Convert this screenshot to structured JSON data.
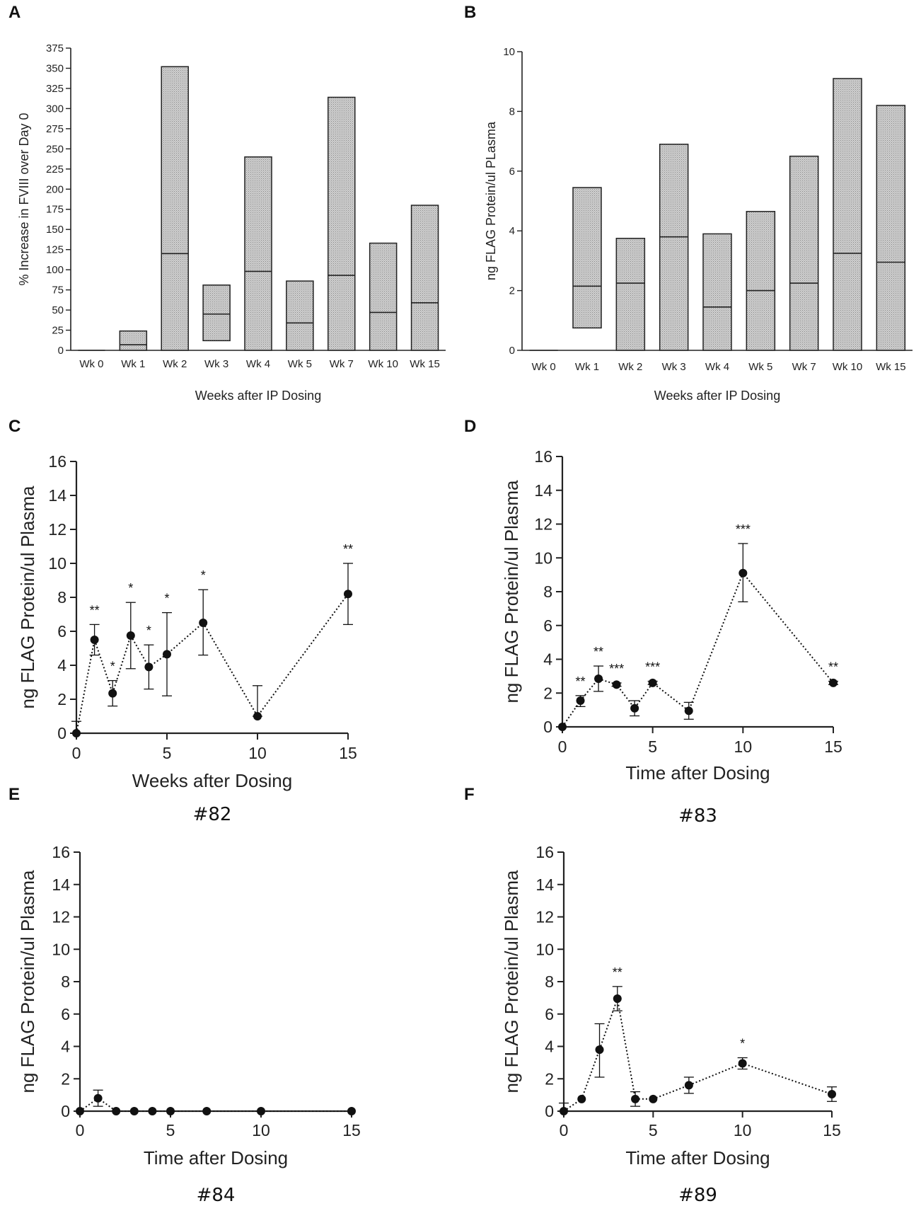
{
  "colors": {
    "bar_fill": "#bdbdbd",
    "stroke": "#222222",
    "text": "#222222"
  },
  "chart_data": [
    {
      "id": "A",
      "panel_label": "A",
      "type": "bar",
      "variant": "floating_min_max_with_mean_line",
      "categories": [
        "Wk 0",
        "Wk 1",
        "Wk 2",
        "Wk 3",
        "Wk 4",
        "Wk 5",
        "Wk 7",
        "Wk 10",
        "Wk 15"
      ],
      "min": [
        0,
        0,
        0,
        12,
        0,
        0,
        0,
        0,
        0
      ],
      "max": [
        0,
        24,
        352,
        81,
        240,
        86,
        314,
        133,
        180
      ],
      "line": [
        0,
        7,
        120,
        45,
        98,
        34,
        93,
        47,
        59
      ],
      "xlabel": "Weeks after IP Dosing",
      "ylabel": "% Increase in FVIII over Day 0",
      "ylim": [
        0,
        375
      ],
      "yticks": [
        0,
        25,
        50,
        75,
        100,
        125,
        150,
        175,
        200,
        225,
        250,
        275,
        300,
        325,
        350,
        375
      ]
    },
    {
      "id": "B",
      "panel_label": "B",
      "type": "bar",
      "variant": "floating_min_max_with_mean_line",
      "categories": [
        "Wk 0",
        "Wk 1",
        "Wk 2",
        "Wk 3",
        "Wk 4",
        "Wk 5",
        "Wk 7",
        "Wk 10",
        "Wk 15"
      ],
      "min": [
        0,
        0.75,
        0,
        0,
        0,
        0,
        0,
        0,
        0
      ],
      "max": [
        0,
        5.45,
        3.75,
        6.9,
        3.9,
        4.65,
        6.5,
        9.1,
        8.2
      ],
      "line": [
        0,
        2.15,
        2.25,
        3.8,
        1.45,
        2.0,
        2.25,
        3.25,
        2.95
      ],
      "xlabel": "Weeks after IP Dosing",
      "ylabel": "ng FLAG Protein/ul PLasma",
      "ylim": [
        0,
        10
      ],
      "yticks": [
        0,
        2,
        4,
        6,
        8,
        10
      ]
    },
    {
      "id": "C",
      "panel_label": "C",
      "type": "line",
      "x": [
        0,
        1,
        2,
        3,
        4,
        5,
        7,
        10,
        15
      ],
      "y": [
        0,
        5.5,
        2.35,
        5.75,
        3.9,
        4.65,
        6.5,
        1.0,
        8.2
      ],
      "err_low": [
        0,
        4.6,
        1.6,
        3.8,
        2.6,
        2.2,
        4.6,
        1.0,
        6.4
      ],
      "err_high": [
        0.7,
        6.4,
        3.1,
        7.7,
        5.2,
        7.1,
        8.45,
        2.8,
        10.0
      ],
      "significance": [
        "",
        "**",
        "*",
        "*",
        "*",
        "*",
        "*",
        "",
        "**"
      ],
      "xlabel": "Weeks after Dosing",
      "ylabel": "ng FLAG Protein/ul Plasma",
      "xlim": [
        0,
        15
      ],
      "ylim": [
        0,
        16
      ],
      "xticks": [
        0,
        5,
        10,
        15
      ],
      "yticks": [
        0,
        2,
        4,
        6,
        8,
        10,
        12,
        14,
        16
      ],
      "subtitle": "#82"
    },
    {
      "id": "D",
      "panel_label": "D",
      "type": "line",
      "x": [
        0,
        1,
        2,
        3,
        4,
        5,
        7,
        10,
        15
      ],
      "y": [
        0,
        1.55,
        2.85,
        2.5,
        1.1,
        2.6,
        0.95,
        9.1,
        2.6
      ],
      "err_low": [
        0,
        1.2,
        2.1,
        2.4,
        0.65,
        2.5,
        0.45,
        7.4,
        2.5
      ],
      "err_high": [
        0,
        1.85,
        3.6,
        2.6,
        1.55,
        2.7,
        1.45,
        10.85,
        2.7
      ],
      "significance": [
        "",
        "**",
        "**",
        "***",
        "",
        "***",
        "",
        "***",
        "**"
      ],
      "xlabel": "Time after Dosing",
      "ylabel": "ng FLAG Protein/ul Plasma",
      "xlim": [
        0,
        15
      ],
      "ylim": [
        0,
        16
      ],
      "xticks": [
        0,
        5,
        10,
        15
      ],
      "yticks": [
        0,
        2,
        4,
        6,
        8,
        10,
        12,
        14,
        16
      ],
      "subtitle": "#83"
    },
    {
      "id": "E",
      "panel_label": "E",
      "type": "line",
      "x": [
        0,
        1,
        2,
        3,
        4,
        5,
        7,
        10,
        15
      ],
      "y": [
        0,
        0.8,
        0,
        0,
        0,
        0,
        0,
        0,
        0
      ],
      "err_low": [
        0,
        0.3,
        0,
        0,
        0,
        0,
        0,
        0,
        0
      ],
      "err_high": [
        0,
        1.3,
        0,
        0,
        0,
        0,
        0,
        0,
        0
      ],
      "significance": [
        "",
        "",
        "",
        "",
        "",
        "",
        "",
        "",
        ""
      ],
      "xlabel": "Time after Dosing",
      "ylabel": "ng FLAG Protein/ul Plasma",
      "xlim": [
        0,
        15
      ],
      "ylim": [
        0,
        16
      ],
      "xticks": [
        0,
        5,
        10,
        15
      ],
      "yticks": [
        0,
        2,
        4,
        6,
        8,
        10,
        12,
        14,
        16
      ],
      "subtitle": "#84"
    },
    {
      "id": "F",
      "panel_label": "F",
      "type": "line",
      "x": [
        0,
        1,
        2,
        3,
        4,
        5,
        7,
        10,
        15
      ],
      "y": [
        0,
        0.75,
        3.8,
        6.95,
        0.75,
        0.75,
        1.6,
        2.95,
        1.05
      ],
      "err_low": [
        0,
        0.75,
        2.1,
        6.2,
        0.3,
        0.75,
        1.1,
        2.6,
        0.6
      ],
      "err_high": [
        0.5,
        0.75,
        5.4,
        7.7,
        1.2,
        0.75,
        2.1,
        3.3,
        1.5
      ],
      "significance": [
        "",
        "",
        "",
        "**",
        "",
        "",
        "",
        "*",
        ""
      ],
      "xlabel": "Time after Dosing",
      "ylabel": "ng FLAG Protein/ul Plasma",
      "xlim": [
        0,
        15
      ],
      "ylim": [
        0,
        16
      ],
      "xticks": [
        0,
        5,
        10,
        15
      ],
      "yticks": [
        0,
        2,
        4,
        6,
        8,
        10,
        12,
        14,
        16
      ],
      "subtitle": "#89"
    }
  ]
}
